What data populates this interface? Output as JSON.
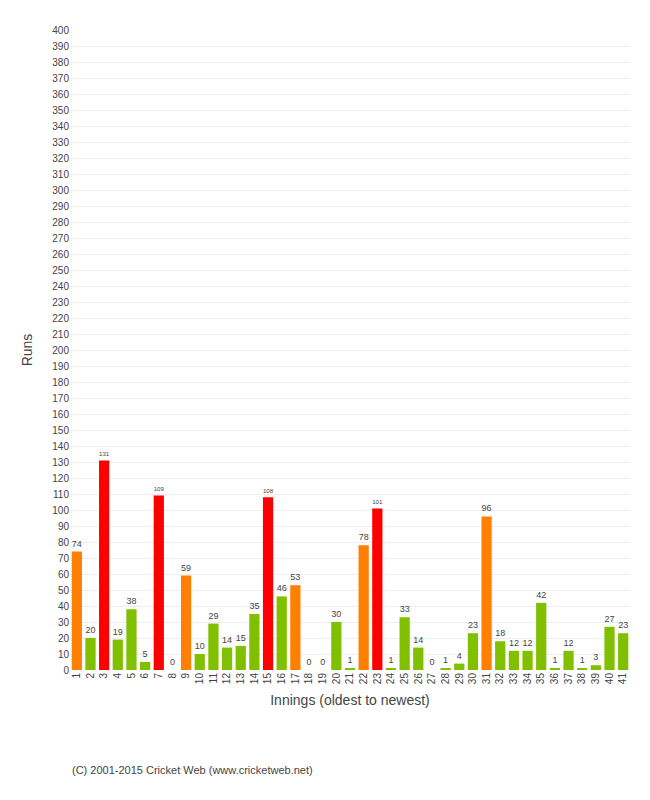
{
  "chart_data": {
    "type": "bar",
    "xlabel": "Innings (oldest to newest)",
    "ylabel": "Runs",
    "categories": [
      "1",
      "2",
      "3",
      "4",
      "5",
      "6",
      "7",
      "8",
      "9",
      "10",
      "11",
      "12",
      "13",
      "14",
      "15",
      "16",
      "17",
      "18",
      "19",
      "20",
      "21",
      "22",
      "23",
      "24",
      "25",
      "26",
      "27",
      "28",
      "29",
      "30",
      "31",
      "32",
      "33",
      "34",
      "35",
      "36",
      "37",
      "38",
      "39",
      "40",
      "41"
    ],
    "values": [
      74,
      20,
      131,
      19,
      38,
      5,
      109,
      0,
      59,
      10,
      29,
      14,
      15,
      35,
      108,
      46,
      53,
      0,
      0,
      30,
      1,
      78,
      101,
      1,
      33,
      14,
      0,
      1,
      4,
      23,
      96,
      18,
      12,
      12,
      42,
      1,
      12,
      1,
      3,
      27,
      23
    ],
    "colors": [
      "#ff8000",
      "#80c000",
      "#ff0000",
      "#80c000",
      "#80c000",
      "#80c000",
      "#ff0000",
      "#80c000",
      "#ff8000",
      "#80c000",
      "#80c000",
      "#80c000",
      "#80c000",
      "#80c000",
      "#ff0000",
      "#80c000",
      "#ff8000",
      "#80c000",
      "#80c000",
      "#80c000",
      "#80c000",
      "#ff8000",
      "#ff0000",
      "#80c000",
      "#80c000",
      "#80c000",
      "#80c000",
      "#80c000",
      "#80c000",
      "#80c000",
      "#ff8000",
      "#80c000",
      "#80c000",
      "#80c000",
      "#80c000",
      "#80c000",
      "#80c000",
      "#80c000",
      "#80c000",
      "#80c000",
      "#80c000"
    ],
    "ylim": [
      0,
      400
    ],
    "yticks": [
      0,
      10,
      20,
      30,
      40,
      50,
      60,
      70,
      80,
      90,
      100,
      110,
      120,
      130,
      140,
      150,
      160,
      170,
      180,
      190,
      200,
      210,
      220,
      230,
      240,
      250,
      260,
      270,
      280,
      290,
      300,
      310,
      320,
      330,
      340,
      350,
      360,
      370,
      380,
      390,
      400
    ],
    "grid": true,
    "data_labels": true,
    "annotations": [
      "(C) 2001-2015 Cricket Web (www.cricketweb.net)"
    ]
  }
}
